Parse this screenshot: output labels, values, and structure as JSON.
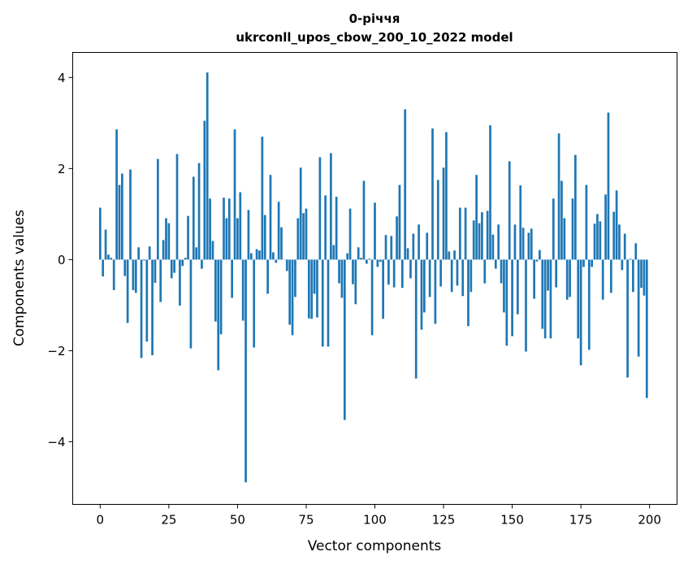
{
  "chart_data": {
    "type": "bar",
    "title": "0-річчя",
    "subtitle": "ukrconll_upos_cbow_200_10_2022 model",
    "xlabel": "Vector components",
    "ylabel": "Components values",
    "xlim": [
      -10,
      210
    ],
    "ylim": [
      -5.375,
      4.55
    ],
    "xticks": [
      0,
      25,
      50,
      75,
      100,
      125,
      150,
      175,
      200
    ],
    "xtick_labels": [
      "0",
      "25",
      "50",
      "75",
      "100",
      "125",
      "150",
      "175",
      "200"
    ],
    "yticks": [
      -4,
      -2,
      0,
      2,
      4
    ],
    "ytick_labels": [
      "−4",
      "−2",
      "0",
      "2",
      "4"
    ],
    "grid": false,
    "bar_color": "#1f77b4",
    "values": [
      1.14,
      -0.37,
      0.66,
      0.11,
      0.04,
      -0.67,
      2.86,
      1.64,
      1.89,
      -0.36,
      -1.39,
      1.98,
      -0.67,
      -0.73,
      0.27,
      -2.16,
      -0.02,
      -1.8,
      0.29,
      -2.1,
      -0.51,
      2.21,
      -0.93,
      0.43,
      0.91,
      0.8,
      -0.41,
      -0.29,
      2.32,
      -1.01,
      -0.14,
      0.04,
      0.96,
      -1.95,
      1.82,
      0.27,
      2.12,
      -0.2,
      3.05,
      4.11,
      1.34,
      0.41,
      -1.36,
      -2.43,
      -1.64,
      1.36,
      0.91,
      1.34,
      -0.84,
      2.86,
      0.91,
      1.48,
      -1.34,
      -4.89,
      1.09,
      0.14,
      -1.93,
      0.23,
      0.2,
      2.7,
      0.98,
      -0.75,
      1.86,
      0.16,
      -0.07,
      1.27,
      0.71,
      0.0,
      -0.25,
      -1.43,
      -1.66,
      -0.82,
      0.91,
      2.02,
      1.02,
      1.12,
      -1.29,
      -1.3,
      -0.75,
      -1.27,
      2.25,
      -1.91,
      1.41,
      -1.91,
      2.34,
      0.32,
      1.38,
      -0.52,
      -0.84,
      -3.52,
      0.14,
      1.12,
      -0.54,
      -0.98,
      0.27,
      0.04,
      1.73,
      -0.09,
      0.02,
      -1.66,
      1.25,
      -0.16,
      -0.05,
      -1.3,
      0.54,
      -0.55,
      0.52,
      -0.61,
      0.95,
      1.64,
      -0.62,
      3.3,
      0.25,
      -0.41,
      0.57,
      -2.61,
      0.77,
      -1.54,
      -1.16,
      0.59,
      -0.82,
      2.88,
      -1.41,
      1.75,
      -0.59,
      2.02,
      2.8,
      0.18,
      -0.71,
      0.2,
      -0.57,
      1.14,
      -0.8,
      1.14,
      -1.46,
      -0.71,
      0.86,
      1.86,
      0.8,
      1.04,
      -0.52,
      1.07,
      2.95,
      0.55,
      -0.2,
      0.77,
      -0.52,
      -1.16,
      -1.89,
      2.16,
      -1.68,
      0.77,
      -1.2,
      1.63,
      0.7,
      -2.02,
      0.59,
      0.68,
      -0.86,
      -0.04,
      0.21,
      -1.52,
      -1.73,
      -0.68,
      -1.73,
      1.34,
      -0.61,
      2.77,
      1.73,
      0.91,
      -0.88,
      -0.82,
      1.34,
      2.3,
      -1.73,
      -2.32,
      -0.16,
      1.64,
      -1.98,
      -0.16,
      0.79,
      1.0,
      0.84,
      -0.88,
      1.43,
      3.23,
      -0.73,
      1.05,
      1.52,
      0.77,
      -0.23,
      0.57,
      -2.59,
      0.02,
      -0.71,
      0.36,
      -2.13,
      -0.62,
      -0.79,
      -3.04
    ]
  }
}
